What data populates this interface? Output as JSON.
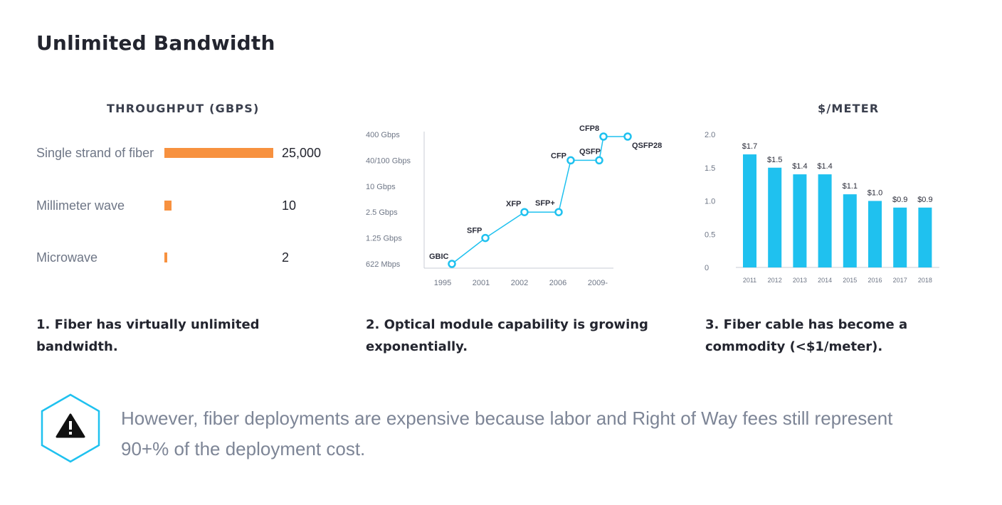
{
  "page": {
    "title": "Unlimited Bandwidth"
  },
  "colors": {
    "bar_orange": "#f7913f",
    "chart_blue": "#1fc1ef",
    "text_dark": "#23252f",
    "text_muted": "#7d8596"
  },
  "captions": [
    "1. Fiber has virtually unlimited bandwidth.",
    "2. Optical module capability is growing exponentially.",
    "3. Fiber cable has become a commodity (<$1/meter)."
  ],
  "note": {
    "icon": "warning-icon",
    "text": "However, fiber deployments are expensive because labor and Right of Way fees still represent 90+% of the deployment cost."
  },
  "chart_data": [
    {
      "type": "bar",
      "orientation": "horizontal",
      "title": "THROUGHPUT (GBPS)",
      "categories": [
        "Single strand of fiber",
        "Millimeter wave",
        "Microwave"
      ],
      "values": [
        25000,
        10,
        2
      ],
      "value_labels": [
        "25,000",
        "10",
        "2"
      ]
    },
    {
      "type": "line",
      "title": "",
      "x_ticks": [
        "1995",
        "2001",
        "2002",
        "2006",
        "2009-"
      ],
      "y_ticks": [
        "622 Mbps",
        "1.25 Gbps",
        "2.5 Gbps",
        "10 Gbps",
        "40/100 Gbps",
        "400 Gbps"
      ],
      "points": [
        {
          "label": "GBIC",
          "x": 1995,
          "y": "622 Mbps"
        },
        {
          "label": "SFP",
          "x": 2001,
          "y": "1.25 Gbps"
        },
        {
          "label": "XFP",
          "x": 2002,
          "y": "2.5 Gbps"
        },
        {
          "label": "SFP+",
          "x": 2006,
          "y": "2.5 Gbps"
        },
        {
          "label": "CFP",
          "x": 2007,
          "y": "40/100 Gbps"
        },
        {
          "label": "QSFP",
          "x": 2009,
          "y": "40/100 Gbps"
        },
        {
          "label": "CFP8",
          "x": 2010,
          "y": "400 Gbps"
        },
        {
          "label": "QSFP28",
          "x": 2011,
          "y": "400 Gbps"
        }
      ]
    },
    {
      "type": "bar",
      "title": "$/METER",
      "categories": [
        "2011",
        "2012",
        "2013",
        "2014",
        "2015",
        "2016",
        "2017",
        "2018"
      ],
      "values": [
        1.7,
        1.5,
        1.4,
        1.4,
        1.1,
        1.0,
        0.9,
        0.9
      ],
      "value_labels": [
        "$1.7",
        "$1.5",
        "$1.4",
        "$1.4",
        "$1.1",
        "$1.0",
        "$0.9",
        "$0.9"
      ],
      "y_ticks": [
        "0",
        "0.5",
        "1.0",
        "1.5",
        "2.0"
      ],
      "ylim": [
        0,
        2.0
      ]
    }
  ]
}
